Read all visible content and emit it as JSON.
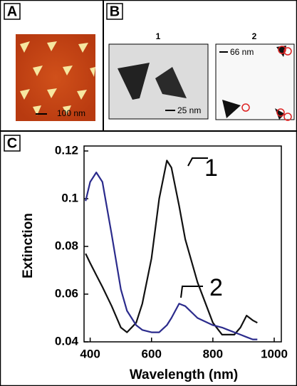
{
  "panels": {
    "a": {
      "label": "A",
      "scale_bar": "100 nm"
    },
    "b": {
      "label": "B",
      "image_1_title": "1",
      "image_1_scale_bar": "25 nm",
      "image_2_title": "2",
      "image_2_scale_bar": "66 nm"
    }
  },
  "chart_data": {
    "type": "line",
    "panel_label": "C",
    "x_label": "Wavelength (nm)",
    "y_label": "Extinction",
    "x": [
      385,
      400,
      420,
      440,
      470,
      500,
      520,
      550,
      570,
      600,
      625,
      650,
      665,
      690,
      700,
      710,
      750,
      800,
      830,
      850,
      870,
      890,
      910,
      930,
      945
    ],
    "series": [
      {
        "name": "1",
        "color": "#111111",
        "values": [
          0.077,
          0.073,
          0.068,
          0.063,
          0.055,
          0.046,
          0.044,
          0.048,
          0.056,
          0.075,
          0.1,
          0.116,
          0.113,
          0.097,
          0.09,
          0.083,
          0.065,
          0.048,
          0.043,
          0.043,
          0.043,
          0.046,
          0.051,
          0.049,
          0.048
        ]
      },
      {
        "name": "2",
        "color": "#2b2b8c",
        "values": [
          0.099,
          0.107,
          0.111,
          0.107,
          0.085,
          0.062,
          0.053,
          0.047,
          0.045,
          0.044,
          0.044,
          0.047,
          0.05,
          0.056,
          0.0555,
          0.055,
          0.05,
          0.047,
          0.046,
          0.045,
          0.044,
          0.043,
          0.042,
          0.041,
          0.041
        ]
      }
    ],
    "xlim": [
      380,
      1000
    ],
    "ylim": [
      0.04,
      0.12
    ],
    "xticks": [
      400,
      600,
      800,
      1000
    ],
    "yticks": [
      0.04,
      0.06,
      0.08,
      0.1,
      0.12
    ],
    "grid": false
  }
}
